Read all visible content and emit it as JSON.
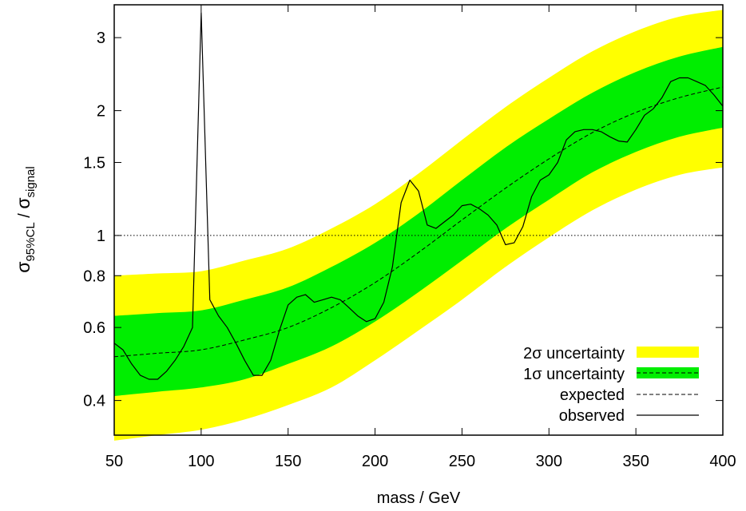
{
  "chart_data": {
    "type": "line",
    "xlabel": "mass / GeV",
    "ylabel": {
      "prefix": "σ",
      "prefix_sub": "95%CL",
      "separator": " / ",
      "suffix": "σ",
      "suffix_sub": "signal"
    },
    "xlim": [
      50,
      400
    ],
    "ylim": [
      0.33,
      3.6
    ],
    "yscale": "log",
    "x_ticks": [
      50,
      100,
      150,
      200,
      250,
      300,
      350,
      400
    ],
    "x_tick_labels": [
      "50",
      "100",
      "150",
      "200",
      "250",
      "300",
      "350",
      "400"
    ],
    "y_ticks": [
      0.4,
      0.6,
      0.8,
      1,
      1.5,
      2,
      3
    ],
    "y_tick_labels": [
      "0.4",
      "0.6",
      "0.8",
      "1",
      "1.5",
      "2",
      "3"
    ],
    "reference_line": {
      "y": 1,
      "style": "dotted"
    },
    "legend": {
      "placement": "bottom-right",
      "entries": [
        {
          "label": "2σ uncertainty",
          "kind": "band",
          "color": "#ffff00"
        },
        {
          "label": "1σ uncertainty",
          "kind": "band",
          "color": "#00ee00"
        },
        {
          "label": "expected",
          "kind": "dashed",
          "color": "#000000"
        },
        {
          "label": "observed",
          "kind": "solid",
          "color": "#000000"
        }
      ]
    },
    "x": [
      50,
      75,
      100,
      125,
      150,
      175,
      200,
      225,
      250,
      275,
      300,
      325,
      350,
      375,
      400
    ],
    "series": [
      {
        "name": "expected",
        "style": "dashed",
        "color": "#000000",
        "values": [
          0.51,
          0.52,
          0.53,
          0.56,
          0.6,
          0.67,
          0.77,
          0.91,
          1.09,
          1.3,
          1.53,
          1.77,
          1.98,
          2.15,
          2.28
        ]
      },
      {
        "name": "1σ uncertainty",
        "style": "band",
        "color": "#00ee00",
        "lower": [
          0.41,
          0.42,
          0.43,
          0.45,
          0.49,
          0.54,
          0.62,
          0.73,
          0.87,
          1.04,
          1.22,
          1.42,
          1.59,
          1.73,
          1.82
        ],
        "upper": [
          0.64,
          0.65,
          0.66,
          0.7,
          0.75,
          0.84,
          0.96,
          1.13,
          1.36,
          1.63,
          1.91,
          2.21,
          2.48,
          2.7,
          2.85
        ]
      },
      {
        "name": "2σ uncertainty",
        "style": "band",
        "color": "#ffff00",
        "lower": [
          0.32,
          0.33,
          0.34,
          0.36,
          0.39,
          0.43,
          0.5,
          0.59,
          0.7,
          0.84,
          0.99,
          1.15,
          1.29,
          1.4,
          1.46
        ],
        "upper": [
          0.8,
          0.81,
          0.82,
          0.87,
          0.93,
          1.04,
          1.19,
          1.41,
          1.7,
          2.04,
          2.4,
          2.78,
          3.11,
          3.37,
          3.5
        ]
      },
      {
        "name": "observed",
        "style": "solid",
        "color": "#000000",
        "x": [
          50,
          55,
          60,
          65,
          70,
          75,
          80,
          85,
          90,
          95,
          100,
          105,
          110,
          115,
          120,
          125,
          130,
          135,
          140,
          145,
          150,
          155,
          160,
          165,
          170,
          175,
          180,
          185,
          190,
          195,
          200,
          205,
          210,
          215,
          220,
          225,
          230,
          235,
          240,
          245,
          250,
          255,
          260,
          265,
          270,
          275,
          280,
          285,
          290,
          295,
          300,
          305,
          310,
          315,
          320,
          325,
          330,
          335,
          340,
          345,
          350,
          355,
          360,
          365,
          370,
          375,
          380,
          385,
          390,
          395,
          400
        ],
        "values": [
          0.55,
          0.53,
          0.49,
          0.46,
          0.45,
          0.45,
          0.47,
          0.5,
          0.54,
          0.6,
          3.45,
          0.7,
          0.64,
          0.6,
          0.55,
          0.5,
          0.46,
          0.46,
          0.5,
          0.59,
          0.68,
          0.71,
          0.72,
          0.69,
          0.7,
          0.71,
          0.7,
          0.67,
          0.64,
          0.62,
          0.63,
          0.69,
          0.84,
          1.2,
          1.36,
          1.28,
          1.06,
          1.04,
          1.08,
          1.12,
          1.18,
          1.19,
          1.16,
          1.12,
          1.06,
          0.95,
          0.96,
          1.05,
          1.24,
          1.36,
          1.4,
          1.5,
          1.7,
          1.78,
          1.8,
          1.8,
          1.78,
          1.73,
          1.69,
          1.68,
          1.8,
          1.95,
          2.02,
          2.15,
          2.35,
          2.4,
          2.4,
          2.35,
          2.3,
          2.18,
          2.05
        ]
      }
    ]
  }
}
